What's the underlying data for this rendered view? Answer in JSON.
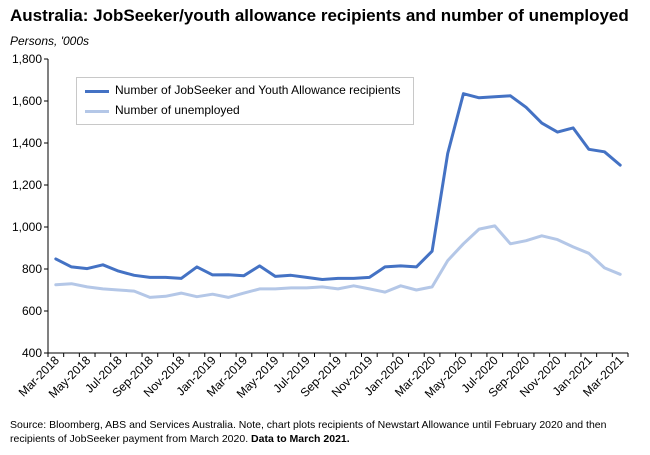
{
  "header": {
    "title": "Australia: JobSeeker/youth allowance recipients and number of unemployed",
    "units": "Persons, '000s"
  },
  "footer": {
    "source": "Source: Bloomberg, ABS and Services Australia.  Note, chart plots recipients of Newstart Allowance until February 2020 and then recipients of JobSeeker payment from March 2020.",
    "emphasis": "Data to March 2021."
  },
  "colors": {
    "jobseeker": "#4472c4",
    "unemployed": "#b4c7e7",
    "axis": "#000000"
  },
  "chart_data": {
    "type": "line",
    "title": "Australia: JobSeeker/youth allowance recipients and number of unemployed",
    "ylabel": "Persons, '000s",
    "ylim": [
      400,
      1800
    ],
    "yticks": [
      400,
      600,
      800,
      1000,
      1200,
      1400,
      1600,
      1800
    ],
    "ytick_labels": [
      "400",
      "600",
      "800",
      "1,000",
      "1,200",
      "1,400",
      "1,600",
      "1,800"
    ],
    "grid": false,
    "legend": "top-left",
    "x": [
      "Mar-2018",
      "Apr-2018",
      "May-2018",
      "Jun-2018",
      "Jul-2018",
      "Aug-2018",
      "Sep-2018",
      "Oct-2018",
      "Nov-2018",
      "Dec-2018",
      "Jan-2019",
      "Feb-2019",
      "Mar-2019",
      "Apr-2019",
      "May-2019",
      "Jun-2019",
      "Jul-2019",
      "Aug-2019",
      "Sep-2019",
      "Oct-2019",
      "Nov-2019",
      "Dec-2019",
      "Jan-2020",
      "Feb-2020",
      "Mar-2020",
      "Apr-2020",
      "May-2020",
      "Jun-2020",
      "Jul-2020",
      "Aug-2020",
      "Sep-2020",
      "Oct-2020",
      "Nov-2020",
      "Dec-2020",
      "Jan-2021",
      "Feb-2021",
      "Mar-2021"
    ],
    "xtick_labels": [
      "Mar-2018",
      "May-2018",
      "Jul-2018",
      "Sep-2018",
      "Nov-2018",
      "Jan-2019",
      "Mar-2019",
      "May-2019",
      "Jul-2019",
      "Sep-2019",
      "Nov-2019",
      "Jan-2020",
      "Mar-2020",
      "May-2020",
      "Jul-2020",
      "Sep-2020",
      "Nov-2020",
      "Jan-2021",
      "Mar-2021"
    ],
    "series": [
      {
        "name": "Number of JobSeeker and Youth Allowance recipients",
        "color": "#4472c4",
        "values": [
          848,
          810,
          802,
          820,
          790,
          770,
          760,
          760,
          755,
          810,
          772,
          773,
          768,
          815,
          765,
          770,
          760,
          750,
          755,
          755,
          760,
          810,
          815,
          810,
          885,
          1350,
          1635,
          1615,
          1620,
          1625,
          1570,
          1495,
          1452,
          1472,
          1370,
          1358,
          1295
        ]
      },
      {
        "name": "Number of unemployed",
        "color": "#b4c7e7",
        "values": [
          725,
          730,
          715,
          705,
          700,
          695,
          665,
          670,
          685,
          668,
          680,
          665,
          685,
          705,
          705,
          710,
          710,
          715,
          705,
          720,
          705,
          690,
          720,
          700,
          715,
          840,
          920,
          990,
          1005,
          920,
          935,
          958,
          940,
          905,
          875,
          805,
          775
        ]
      }
    ]
  }
}
